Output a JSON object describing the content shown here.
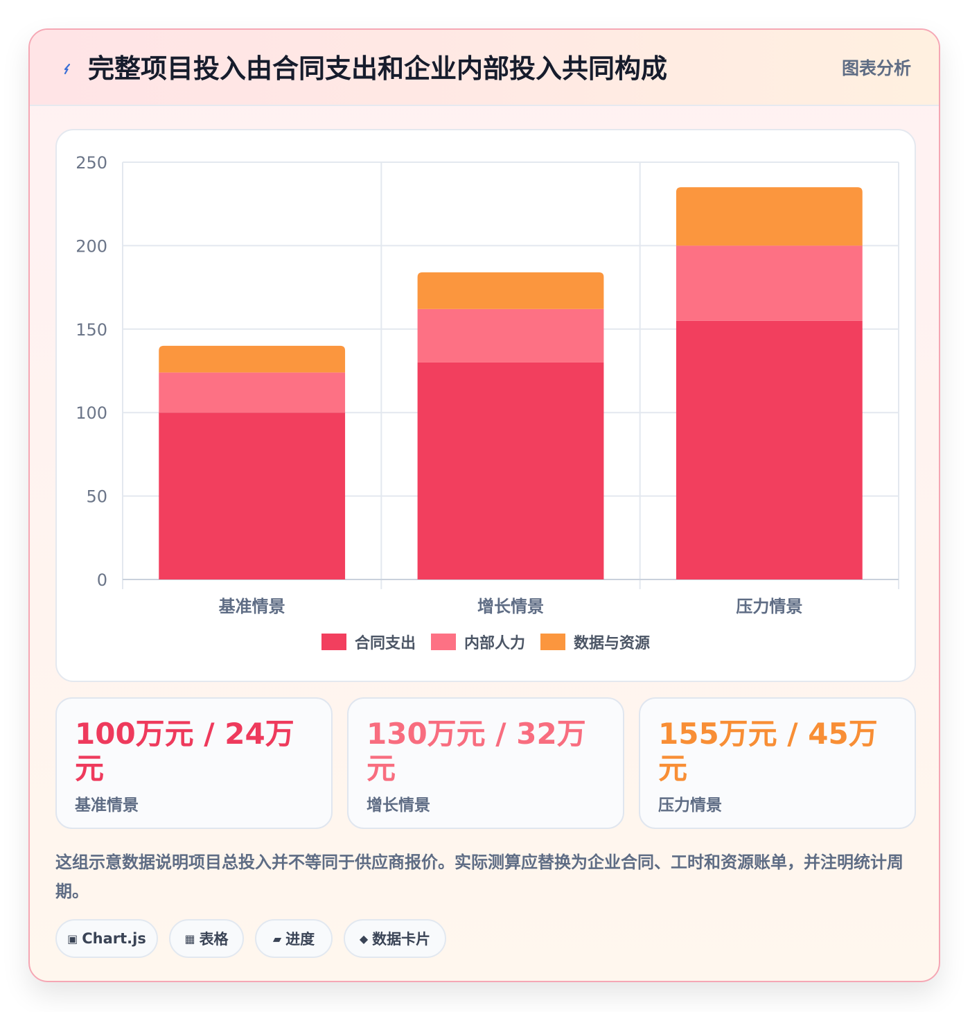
{
  "header": {
    "icon": "lightning-icon",
    "title": "完整项目投入由合同支出和企业内部投入共同构成",
    "tag": "图表分析"
  },
  "chart_data": {
    "type": "bar",
    "stacked": true,
    "categories": [
      "基准情景",
      "增长情景",
      "压力情景"
    ],
    "series": [
      {
        "name": "合同支出",
        "values": [
          100,
          130,
          155
        ],
        "color": "#f23f5e"
      },
      {
        "name": "内部人力",
        "values": [
          24,
          32,
          45
        ],
        "color": "#fd7184"
      },
      {
        "name": "数据与资源",
        "values": [
          16,
          22,
          35
        ],
        "color": "#fb963e"
      }
    ],
    "ylim": [
      0,
      250
    ],
    "yticks": [
      "0",
      "50",
      "100",
      "150",
      "200",
      "250"
    ],
    "grid": true,
    "legend": "bottom"
  },
  "stats": [
    {
      "value": "100万元 / 24万元",
      "label": "基准情景",
      "color": "#ee3a5c"
    },
    {
      "value": "130万元 / 32万元",
      "label": "增长情景",
      "color": "#f86d7f"
    },
    {
      "value": "155万元 / 45万元",
      "label": "压力情景",
      "color": "#f88e35"
    }
  ],
  "note": "这组示意数据说明项目总投入并不等同于供应商报价。实际测算应替换为企业合同、工时和资源账单，并注明统计周期。",
  "chips": [
    {
      "icon": "▣",
      "icon_name": "chart-icon",
      "label": "Chart.js"
    },
    {
      "icon": "▦",
      "icon_name": "table-icon",
      "label": "表格"
    },
    {
      "icon": "▰",
      "icon_name": "progress-icon",
      "label": "进度"
    },
    {
      "icon": "◆",
      "icon_name": "diamond-icon",
      "label": "数据卡片"
    }
  ]
}
